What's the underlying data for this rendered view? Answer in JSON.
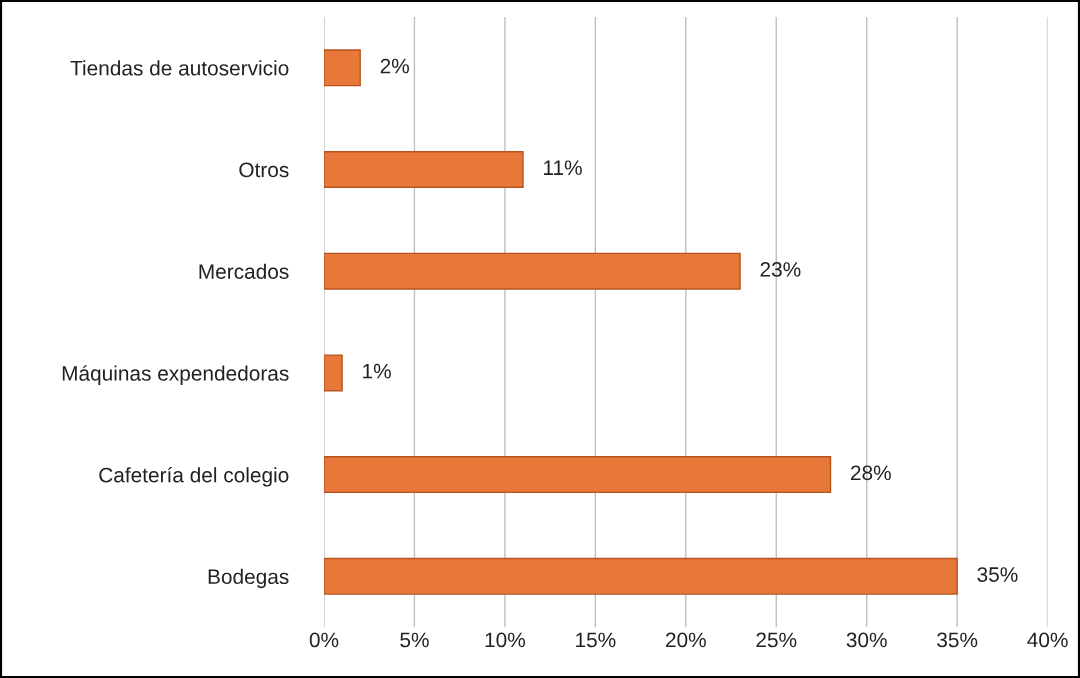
{
  "chart_data": {
    "type": "bar",
    "orientation": "horizontal",
    "categories": [
      "Tiendas de autoservicio",
      "Otros",
      "Mercados",
      "Máquinas expendedoras",
      "Cafetería del colegio",
      "Bodegas"
    ],
    "values": [
      2,
      11,
      23,
      1,
      28,
      35
    ],
    "value_labels": [
      "2%",
      "11%",
      "23%",
      "1%",
      "28%",
      "35%"
    ],
    "color": "#e8773a",
    "xlim": [
      0,
      40
    ],
    "xticks": [
      {
        "value": 0,
        "label": "0%"
      },
      {
        "value": 5,
        "label": "5%"
      },
      {
        "value": 10,
        "label": "10%"
      },
      {
        "value": 15,
        "label": "15%"
      },
      {
        "value": 20,
        "label": "20%"
      },
      {
        "value": 25,
        "label": "25%"
      },
      {
        "value": 30,
        "label": "30%"
      },
      {
        "value": 35,
        "label": "35%"
      },
      {
        "value": 40,
        "label": "40%"
      }
    ],
    "grid": "x"
  }
}
